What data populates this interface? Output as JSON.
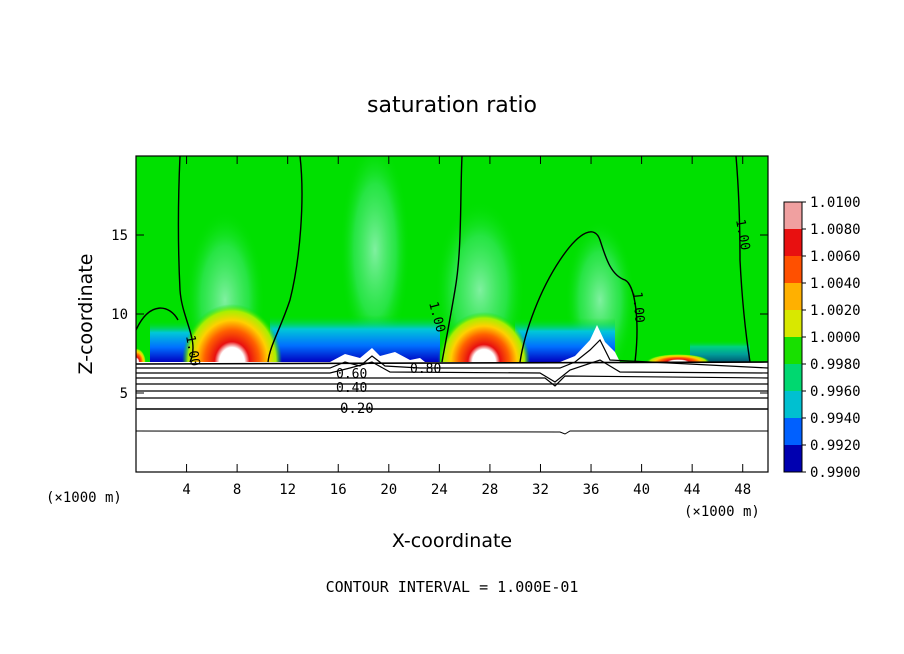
{
  "chart_data": {
    "type": "heatmap",
    "title": "saturation ratio",
    "xlabel": "X-coordinate",
    "ylabel": "Z-coordinate",
    "x_unit_label_left": "(×1000 m)",
    "x_unit_label_right": "(×1000 m)",
    "footer": "CONTOUR INTERVAL = 1.000E-01",
    "xlim": [
      0,
      50
    ],
    "ylim": [
      0,
      20
    ],
    "x_ticks": [
      "4",
      "8",
      "12",
      "16",
      "20",
      "24",
      "28",
      "32",
      "36",
      "40",
      "44",
      "48"
    ],
    "x_tick_values": [
      4,
      8,
      12,
      16,
      20,
      24,
      28,
      32,
      36,
      40,
      44,
      48
    ],
    "y_ticks": [
      "5",
      "10",
      "15"
    ],
    "y_tick_values": [
      5,
      10,
      15
    ],
    "colorbar": {
      "labels": [
        "1.0100",
        "1.0080",
        "1.0060",
        "1.0040",
        "1.0020",
        "1.0000",
        "0.9980",
        "0.9960",
        "0.9940",
        "0.9920",
        "0.9900"
      ],
      "values": [
        1.01,
        1.008,
        1.006,
        1.004,
        1.002,
        1.0,
        0.998,
        0.996,
        0.994,
        0.992,
        0.99
      ],
      "colors": [
        "#f0a0a0",
        "#e81010",
        "#ff5000",
        "#ffb000",
        "#d8e800",
        "#18e000",
        "#00d870",
        "#00c0d0",
        "#0060ff",
        "#0000b0",
        "#6000a0"
      ]
    },
    "contour_labels": [
      "1.00",
      "1.00",
      "1.00",
      "1.00",
      "1.00",
      "0.80",
      "0.60",
      "0.40",
      "0.20"
    ],
    "contour_levels": [
      0.2,
      0.4,
      0.6,
      0.8,
      1.0
    ],
    "background_value": 1.0,
    "cloud_base_z": 7.0
  }
}
